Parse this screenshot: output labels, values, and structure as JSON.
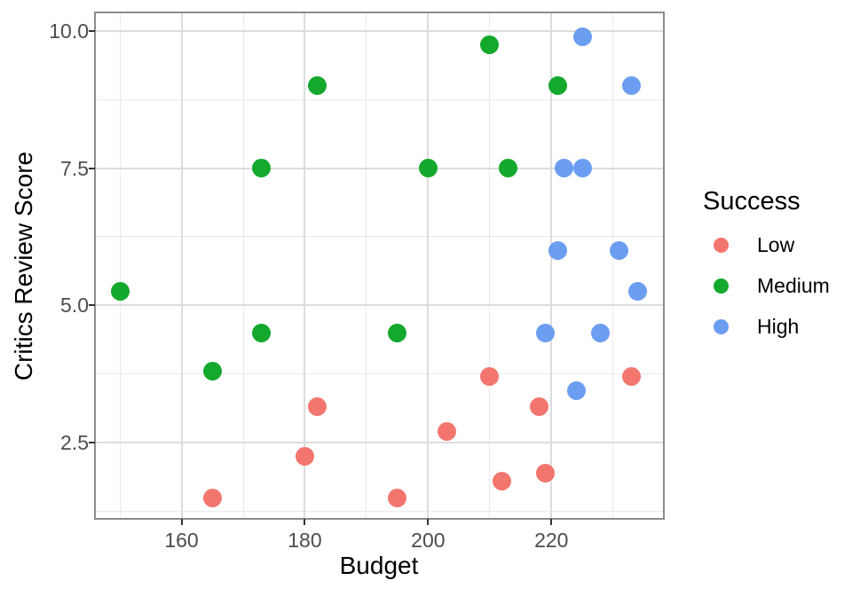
{
  "chart_data": {
    "type": "scatter",
    "title": "",
    "xlabel": "Budget",
    "ylabel": "Critics Review Score",
    "legend_title": "Success",
    "legend_position": "right",
    "grid": "on",
    "xlim": [
      146.1,
      238.1
    ],
    "ylim": [
      1.13,
      10.32
    ],
    "x_ticks": [
      160,
      180,
      200,
      220
    ],
    "x_tick_labels": [
      "160",
      "180",
      "200",
      "220"
    ],
    "x_minor_ticks": [
      150,
      170,
      190,
      210,
      230
    ],
    "y_ticks": [
      2.5,
      5.0,
      7.5,
      10.0
    ],
    "y_tick_labels": [
      "2.5",
      "5.0",
      "7.5",
      "10.0"
    ],
    "y_minor_ticks": [
      1.25,
      3.75,
      6.25,
      8.75
    ],
    "series": [
      {
        "name": "Low",
        "color": "#f3766e",
        "points": [
          [
            165,
            1.5
          ],
          [
            180,
            2.25
          ],
          [
            182,
            3.15
          ],
          [
            195,
            1.5
          ],
          [
            203,
            2.7
          ],
          [
            210,
            3.7
          ],
          [
            212,
            1.8
          ],
          [
            218,
            3.15
          ],
          [
            219,
            1.95
          ],
          [
            233,
            3.7
          ]
        ]
      },
      {
        "name": "Medium",
        "color": "#14a82d",
        "points": [
          [
            150,
            5.25
          ],
          [
            165,
            3.8
          ],
          [
            173,
            4.5
          ],
          [
            173,
            7.5
          ],
          [
            182,
            9.0
          ],
          [
            195,
            4.5
          ],
          [
            200,
            7.5
          ],
          [
            210,
            9.75
          ],
          [
            213,
            7.5
          ],
          [
            221,
            9.0
          ]
        ]
      },
      {
        "name": "High",
        "color": "#6b9df1",
        "points": [
          [
            219,
            4.5
          ],
          [
            221,
            6.0
          ],
          [
            222,
            7.5
          ],
          [
            224,
            3.45
          ],
          [
            225,
            7.5
          ],
          [
            225,
            9.9
          ],
          [
            228,
            4.5
          ],
          [
            231,
            6.0
          ],
          [
            233,
            9.0
          ],
          [
            234,
            5.25
          ]
        ]
      }
    ],
    "colors": {
      "grid_major": "#dcdcdc",
      "grid_minor": "#e9e9e9",
      "panel_border": "#8c8c8c",
      "tick_text": "#4d4d4d",
      "axis_title_text": "#000000"
    }
  }
}
